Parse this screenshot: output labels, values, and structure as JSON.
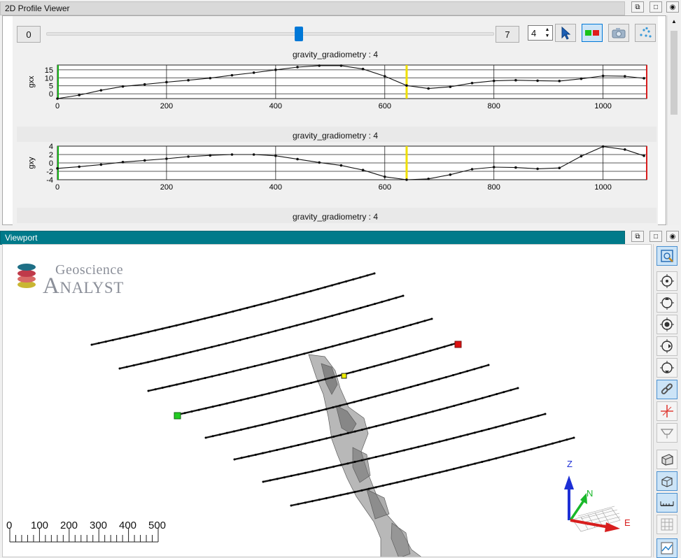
{
  "profile_viewer": {
    "title": "2D Profile Viewer",
    "slider": {
      "min_label": "0",
      "max_label": "7",
      "value": 4
    },
    "line_spinner": "4",
    "tools": [
      "select-arrow-icon",
      "color-swatch-icon",
      "camera-icon",
      "scatter-points-icon"
    ]
  },
  "charts": [
    {
      "title": "gravity_gradiometry : 4",
      "ylabel": "gxx"
    },
    {
      "title": "gravity_gradiometry : 4",
      "ylabel": "gxy"
    },
    {
      "title": "gravity_gradiometry : 4"
    }
  ],
  "chart_data": [
    {
      "type": "line",
      "title": "gravity_gradiometry : 4",
      "ylabel": "gxx",
      "xlim": [
        0,
        1080
      ],
      "ylim": [
        -3,
        18
      ],
      "xticks": [
        0,
        200,
        400,
        600,
        800,
        1000
      ],
      "yticks": [
        0,
        5,
        10,
        15
      ],
      "marker_x": 640,
      "x": [
        0,
        40,
        80,
        120,
        160,
        200,
        240,
        280,
        320,
        360,
        400,
        440,
        480,
        520,
        560,
        600,
        640,
        680,
        720,
        760,
        800,
        840,
        880,
        920,
        960,
        1000,
        1040,
        1075
      ],
      "y": [
        -3.0,
        -0.8,
        2.2,
        4.6,
        5.9,
        7.3,
        8.5,
        9.8,
        11.6,
        13.2,
        15.0,
        16.7,
        17.6,
        17.6,
        15.5,
        11.0,
        5.2,
        3.3,
        4.4,
        6.7,
        8.1,
        8.5,
        8.2,
        8.0,
        9.4,
        11.2,
        11.0,
        9.7
      ]
    },
    {
      "type": "line",
      "title": "gravity_gradiometry : 4",
      "ylabel": "gxy",
      "xlim": [
        0,
        1080
      ],
      "ylim": [
        -4,
        4
      ],
      "xticks": [
        0,
        200,
        400,
        600,
        800,
        1000
      ],
      "yticks": [
        4,
        2,
        0,
        -2,
        -4
      ],
      "marker_x": 640,
      "x": [
        0,
        40,
        80,
        120,
        160,
        200,
        240,
        280,
        320,
        360,
        400,
        440,
        480,
        520,
        560,
        600,
        640,
        680,
        720,
        760,
        800,
        840,
        880,
        920,
        960,
        1000,
        1040,
        1075
      ],
      "y": [
        -1.3,
        -0.9,
        -0.4,
        0.2,
        0.6,
        1.0,
        1.5,
        1.8,
        2.0,
        2.0,
        1.7,
        0.9,
        0.1,
        -0.6,
        -1.7,
        -3.3,
        -4.0,
        -3.8,
        -2.8,
        -1.5,
        -1.0,
        -1.1,
        -1.4,
        -1.2,
        1.6,
        3.9,
        3.2,
        1.7
      ]
    }
  ],
  "viewport": {
    "title": "Viewport",
    "logo_line1": "Geoscience",
    "logo_line2": "Analyst",
    "scale_labels": [
      "0",
      "100",
      "200",
      "300",
      "400",
      "500"
    ],
    "axis_labels": {
      "z": "Z",
      "n": "N",
      "e": "E"
    },
    "colors": {
      "title_bar": "#007a8a",
      "start_marker": "#22cc22",
      "end_marker": "#dd1111",
      "selected_marker": "#eeee00"
    },
    "toolbar": [
      "zoom-extent-icon",
      "rotate-icon",
      "pan-icon",
      "focus-icon",
      "orbit-icon",
      "look-icon",
      "link-icon",
      "crosshair-icon",
      "section-icon",
      "perspective-icon",
      "box-icon",
      "ruler-icon",
      "grid-icon",
      "chart-icon"
    ]
  }
}
